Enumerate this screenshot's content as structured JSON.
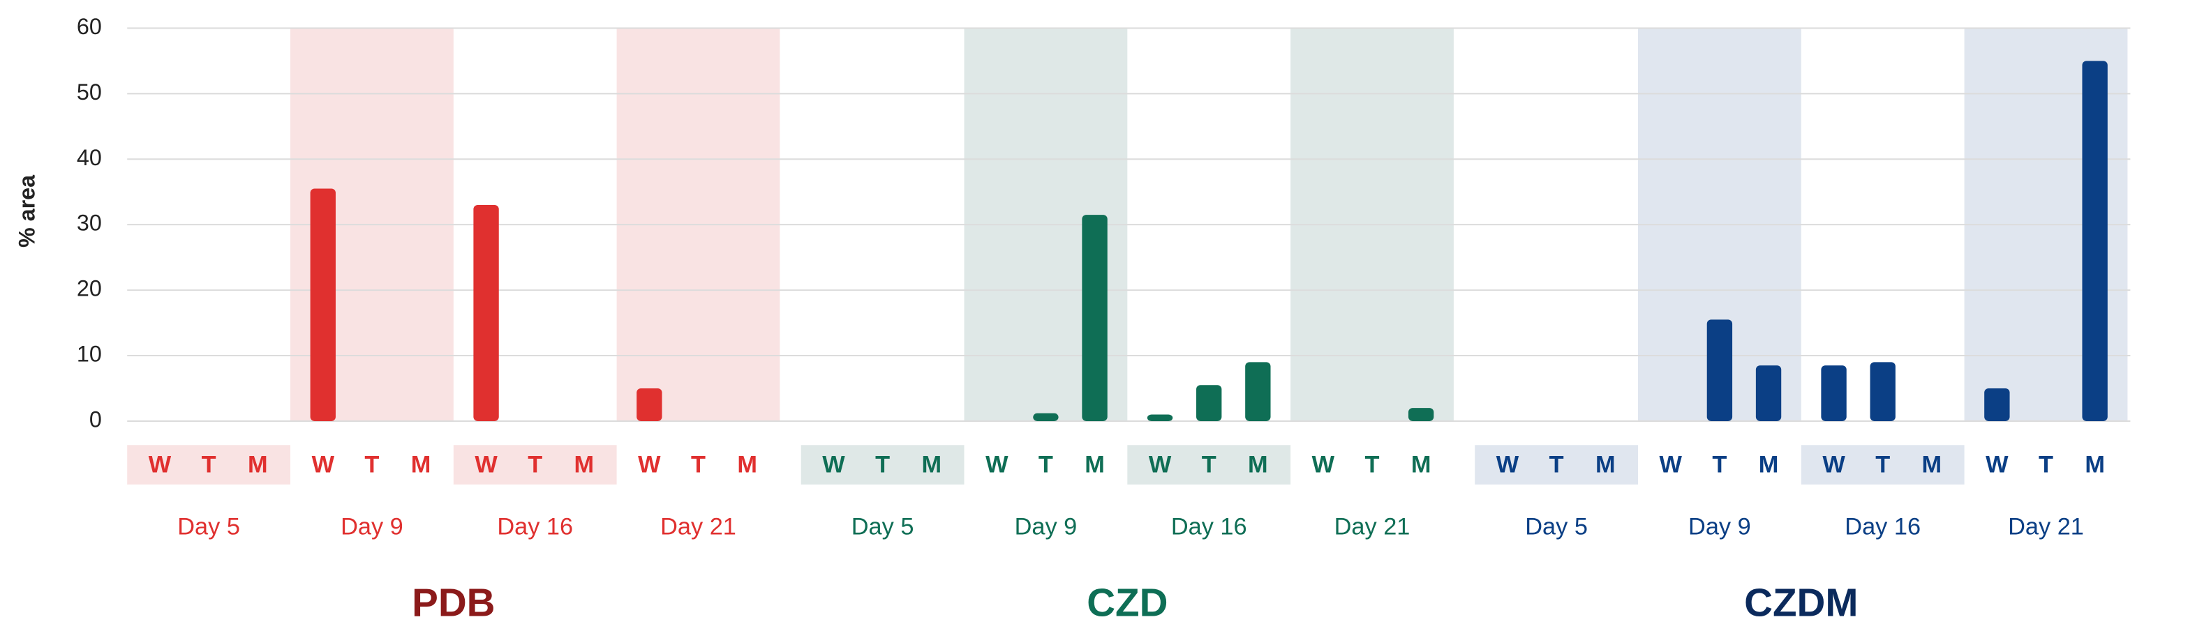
{
  "chart_data": {
    "type": "bar",
    "ylabel": "% area",
    "ylim": [
      0,
      60
    ],
    "yticks": [
      0,
      10,
      20,
      30,
      40,
      50,
      60
    ],
    "grid": true,
    "groups": [
      {
        "name": "PDB",
        "color": "#e0302f",
        "shade": "#f9e3e3",
        "label_color": "#8b1a1a",
        "days": [
          {
            "label": "Day 5",
            "categories": [
              "W",
              "T",
              "M"
            ],
            "values": [
              0,
              0,
              0
            ]
          },
          {
            "label": "Day 9",
            "categories": [
              "W",
              "T",
              "M"
            ],
            "values": [
              35.5,
              0,
              0
            ]
          },
          {
            "label": "Day 16",
            "categories": [
              "W",
              "T",
              "M"
            ],
            "values": [
              33,
              0,
              0
            ]
          },
          {
            "label": "Day 21",
            "categories": [
              "W",
              "T",
              "M"
            ],
            "values": [
              5,
              0,
              0
            ]
          }
        ]
      },
      {
        "name": "CZD",
        "color": "#0f6e55",
        "shade": "#dfe8e7",
        "label_color": "#0e6e55",
        "days": [
          {
            "label": "Day 5",
            "categories": [
              "W",
              "T",
              "M"
            ],
            "values": [
              0,
              0,
              0
            ]
          },
          {
            "label": "Day 9",
            "categories": [
              "W",
              "T",
              "M"
            ],
            "values": [
              0,
              1.2,
              31.5
            ]
          },
          {
            "label": "Day 16",
            "categories": [
              "W",
              "T",
              "M"
            ],
            "values": [
              1,
              5.5,
              9
            ]
          },
          {
            "label": "Day 21",
            "categories": [
              "W",
              "T",
              "M"
            ],
            "values": [
              0,
              0,
              2
            ]
          }
        ]
      },
      {
        "name": "CZDM",
        "color": "#0b3f85",
        "shade": "#e0e6ef",
        "label_color": "#0b2a5c",
        "days": [
          {
            "label": "Day 5",
            "categories": [
              "W",
              "T",
              "M"
            ],
            "values": [
              0,
              0,
              0
            ]
          },
          {
            "label": "Day 9",
            "categories": [
              "W",
              "T",
              "M"
            ],
            "values": [
              0,
              15.5,
              8.5
            ]
          },
          {
            "label": "Day 16",
            "categories": [
              "W",
              "T",
              "M"
            ],
            "values": [
              8.5,
              9,
              0
            ]
          },
          {
            "label": "Day 21",
            "categories": [
              "W",
              "T",
              "M"
            ],
            "values": [
              5,
              0,
              55
            ]
          }
        ]
      }
    ]
  }
}
